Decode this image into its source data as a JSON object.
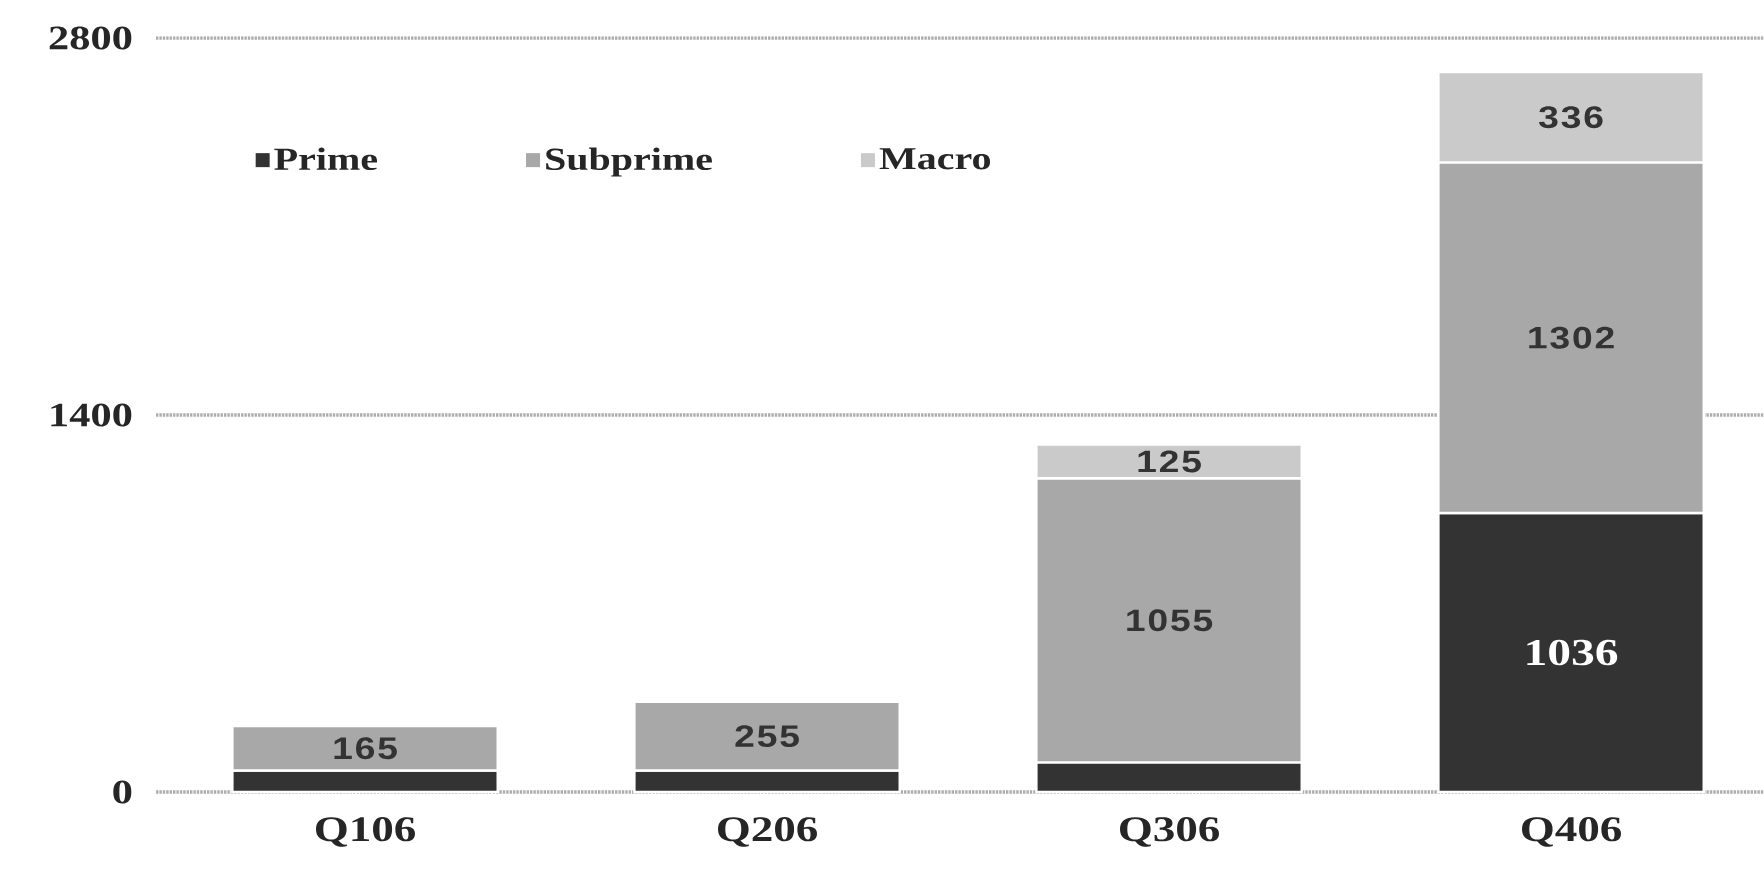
{
  "chart_data": {
    "type": "bar",
    "stacked": true,
    "categories": [
      "Q106",
      "Q206",
      "Q306",
      "Q406"
    ],
    "series": [
      {
        "name": "Prime",
        "color": "#333333",
        "values": [
          80,
          80,
          110,
          1036
        ],
        "value_labels": [
          null,
          null,
          null,
          "1036"
        ]
      },
      {
        "name": "Subprime",
        "color": "#a8a8a8",
        "values": [
          165,
          255,
          1055,
          1302
        ],
        "value_labels": [
          "165",
          "255",
          "1055",
          "1302"
        ]
      },
      {
        "name": "Macro",
        "color": "#cacaca",
        "values": [
          null,
          null,
          125,
          336
        ],
        "value_labels": [
          null,
          null,
          "125",
          "336"
        ]
      }
    ],
    "ylim": [
      0,
      2800
    ],
    "yticks": [
      0,
      1400,
      2800
    ],
    "grid": "y",
    "legend": "top left"
  }
}
